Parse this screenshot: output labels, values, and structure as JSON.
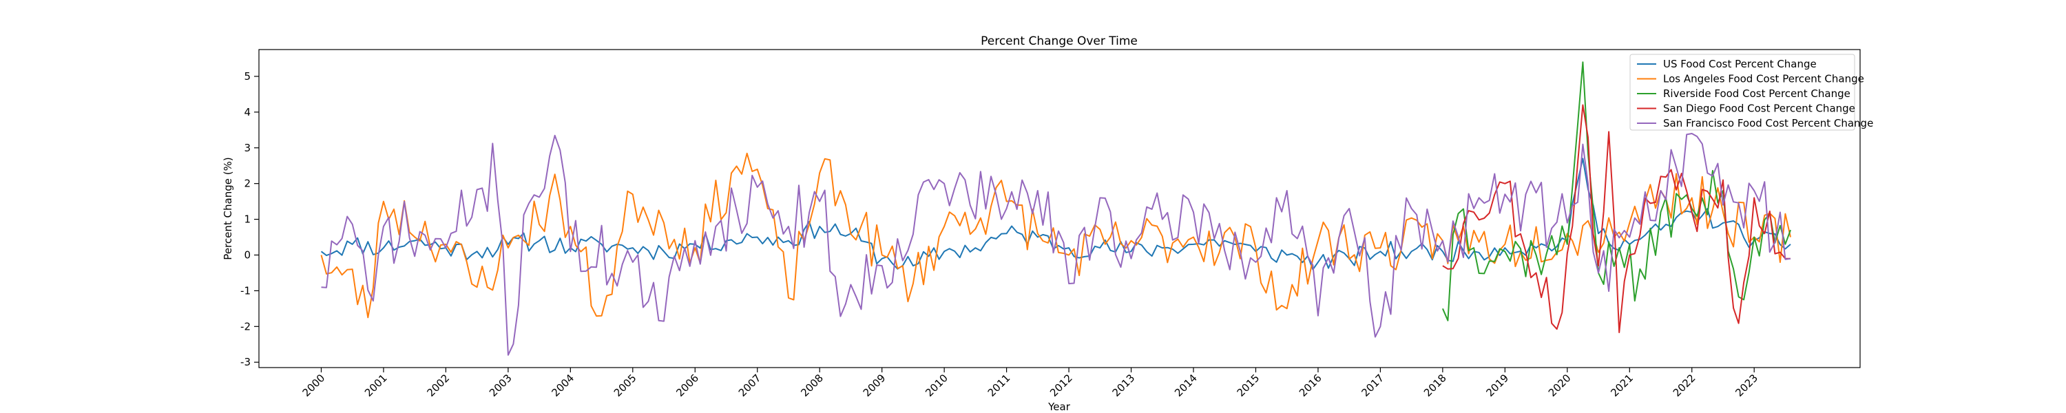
{
  "chart_data": {
    "type": "line",
    "title": "Percent Change Over Time",
    "xlabel": "Year",
    "ylabel": "Percent Change (%)",
    "xlim": [
      1999.0,
      2024.7
    ],
    "ylim": [
      -3.15,
      5.75
    ],
    "y_ticks": [
      -3,
      -2,
      -1,
      0,
      1,
      2,
      3,
      4,
      5
    ],
    "x_ticks": [
      "2000",
      "2001",
      "2002",
      "2003",
      "2004",
      "2005",
      "2006",
      "2007",
      "2008",
      "2009",
      "2010",
      "2011",
      "2012",
      "2013",
      "2014",
      "2015",
      "2016",
      "2017",
      "2018",
      "2019",
      "2020",
      "2021",
      "2022",
      "2023"
    ],
    "grid": false,
    "legend_position": "top-right",
    "series": [
      {
        "name": "US Food Cost Percent Change",
        "color": "#1f77b4",
        "start": 2000.0,
        "end": 2023.58,
        "points": [
          [
            2000.0,
            0.1
          ],
          [
            2000.5,
            0.3
          ],
          [
            2001.0,
            0.2
          ],
          [
            2001.5,
            0.4
          ],
          [
            2002.0,
            0.2
          ],
          [
            2002.5,
            0.1
          ],
          [
            2003.0,
            0.3
          ],
          [
            2003.5,
            0.4
          ],
          [
            2004.0,
            0.2
          ],
          [
            2004.5,
            0.3
          ],
          [
            2005.0,
            0.2
          ],
          [
            2005.5,
            0.1
          ],
          [
            2006.0,
            0.3
          ],
          [
            2006.5,
            0.4
          ],
          [
            2007.0,
            0.5
          ],
          [
            2007.5,
            0.4
          ],
          [
            2008.0,
            0.8
          ],
          [
            2008.5,
            0.6
          ],
          [
            2009.0,
            -0.1
          ],
          [
            2009.5,
            -0.3
          ],
          [
            2010.0,
            0.1
          ],
          [
            2010.5,
            0.2
          ],
          [
            2011.0,
            0.6
          ],
          [
            2011.5,
            0.5
          ],
          [
            2012.0,
            0.2
          ],
          [
            2012.5,
            0.2
          ],
          [
            2013.0,
            0.1
          ],
          [
            2013.5,
            0.2
          ],
          [
            2014.0,
            0.3
          ],
          [
            2014.5,
            0.4
          ],
          [
            2015.0,
            0.1
          ],
          [
            2015.5,
            0.0
          ],
          [
            2016.0,
            -0.2
          ],
          [
            2016.5,
            -0.1
          ],
          [
            2017.0,
            0.1
          ],
          [
            2017.5,
            0.1
          ],
          [
            2018.0,
            0.1
          ],
          [
            2018.5,
            0.1
          ],
          [
            2019.0,
            0.2
          ],
          [
            2019.5,
            0.2
          ],
          [
            2020.0,
            0.4
          ],
          [
            2020.25,
            2.7
          ],
          [
            2020.5,
            0.6
          ],
          [
            2021.0,
            0.3
          ],
          [
            2021.5,
            0.7
          ],
          [
            2022.0,
            1.2
          ],
          [
            2022.5,
            0.9
          ],
          [
            2023.0,
            0.4
          ],
          [
            2023.58,
            0.3
          ]
        ],
        "amplitude": 0.28,
        "seed": 11
      },
      {
        "name": "Los Angeles Food Cost Percent Change",
        "color": "#ff7f0e",
        "start": 2000.0,
        "end": 2023.58,
        "points": [
          [
            2000.0,
            0.0
          ],
          [
            2000.8,
            -1.4
          ],
          [
            2001.0,
            1.5
          ],
          [
            2002.0,
            0.3
          ],
          [
            2002.5,
            -0.9
          ],
          [
            2003.0,
            0.2
          ],
          [
            2003.8,
            1.7
          ],
          [
            2004.5,
            -1.7
          ],
          [
            2005.0,
            1.7
          ],
          [
            2006.0,
            0.2
          ],
          [
            2006.7,
            2.6
          ],
          [
            2007.0,
            2.4
          ],
          [
            2007.5,
            -1.2
          ],
          [
            2008.0,
            2.3
          ],
          [
            2009.0,
            0.0
          ],
          [
            2009.5,
            -0.8
          ],
          [
            2010.0,
            0.8
          ],
          [
            2011.0,
            1.5
          ],
          [
            2011.5,
            0.6
          ],
          [
            2012.0,
            0.0
          ],
          [
            2013.0,
            0.4
          ],
          [
            2014.0,
            0.5
          ],
          [
            2015.0,
            0.2
          ],
          [
            2015.5,
            -1.5
          ],
          [
            2016.0,
            0.4
          ],
          [
            2017.0,
            0.2
          ],
          [
            2018.0,
            0.4
          ],
          [
            2019.0,
            0.3
          ],
          [
            2020.0,
            0.6
          ],
          [
            2021.0,
            0.9
          ],
          [
            2021.5,
            1.8
          ],
          [
            2022.0,
            1.6
          ],
          [
            2022.5,
            1.2
          ],
          [
            2023.0,
            0.5
          ],
          [
            2023.58,
            0.5
          ]
        ],
        "amplitude": 0.75,
        "seed": 23
      },
      {
        "name": "Riverside Food Cost Percent Change",
        "color": "#2ca02c",
        "start": 2018.0,
        "end": 2023.58,
        "points": [
          [
            2018.0,
            -1.5
          ],
          [
            2018.1,
            -1.9
          ],
          [
            2018.2,
            1.8
          ],
          [
            2018.5,
            0.2
          ],
          [
            2019.0,
            0.1
          ],
          [
            2019.5,
            0.0
          ],
          [
            2020.0,
            0.3
          ],
          [
            2020.25,
            5.4
          ],
          [
            2020.5,
            -0.5
          ],
          [
            2021.0,
            0.3
          ],
          [
            2021.1,
            -1.6
          ],
          [
            2021.5,
            1.2
          ],
          [
            2022.0,
            1.3
          ],
          [
            2022.5,
            1.8
          ],
          [
            2022.8,
            -1.6
          ],
          [
            2023.0,
            0.5
          ],
          [
            2023.58,
            0.7
          ]
        ],
        "amplitude": 0.75,
        "seed": 37
      },
      {
        "name": "San Diego Food Cost Percent Change",
        "color": "#d62728",
        "start": 2018.0,
        "end": 2023.58,
        "points": [
          [
            2018.0,
            -0.3
          ],
          [
            2018.5,
            1.2
          ],
          [
            2019.0,
            2.0
          ],
          [
            2019.5,
            -0.5
          ],
          [
            2019.9,
            -1.9
          ],
          [
            2020.25,
            4.2
          ],
          [
            2020.5,
            -0.3
          ],
          [
            2020.7,
            4.2
          ],
          [
            2020.8,
            -2.6
          ],
          [
            2021.0,
            0.0
          ],
          [
            2021.5,
            2.2
          ],
          [
            2021.8,
            2.5
          ],
          [
            2022.0,
            1.2
          ],
          [
            2022.5,
            2.1
          ],
          [
            2022.7,
            -2.2
          ],
          [
            2023.0,
            1.6
          ],
          [
            2023.58,
            -0.1
          ]
        ],
        "amplitude": 0.7,
        "seed": 53
      },
      {
        "name": "San Francisco Food Cost Percent Change",
        "color": "#9467bd",
        "start": 2000.0,
        "end": 2023.58,
        "points": [
          [
            2000.0,
            -0.9
          ],
          [
            2000.4,
            1.2
          ],
          [
            2000.8,
            -1.7
          ],
          [
            2001.0,
            0.8
          ],
          [
            2002.0,
            0.2
          ],
          [
            2002.8,
            2.4
          ],
          [
            2003.0,
            -2.8
          ],
          [
            2003.3,
            1.3
          ],
          [
            2003.8,
            3.5
          ],
          [
            2004.0,
            0.1
          ],
          [
            2005.0,
            -0.2
          ],
          [
            2005.4,
            -1.9
          ],
          [
            2006.0,
            0.4
          ],
          [
            2006.7,
            1.3
          ],
          [
            2007.0,
            1.9
          ],
          [
            2007.5,
            0.8
          ],
          [
            2008.0,
            1.5
          ],
          [
            2008.4,
            -1.4
          ],
          [
            2009.0,
            -0.3
          ],
          [
            2009.8,
            1.8
          ],
          [
            2010.0,
            2.0
          ],
          [
            2011.0,
            1.3
          ],
          [
            2011.5,
            1.8
          ],
          [
            2012.0,
            -0.8
          ],
          [
            2012.5,
            1.6
          ],
          [
            2013.0,
            -0.1
          ],
          [
            2013.5,
            1.0
          ],
          [
            2014.0,
            1.2
          ],
          [
            2015.0,
            -0.2
          ],
          [
            2015.5,
            1.8
          ],
          [
            2016.0,
            -1.7
          ],
          [
            2016.5,
            1.3
          ],
          [
            2017.0,
            -2.0
          ],
          [
            2017.5,
            1.3
          ],
          [
            2018.0,
            0.4
          ],
          [
            2019.0,
            1.7
          ],
          [
            2020.0,
            0.9
          ],
          [
            2020.25,
            3.1
          ],
          [
            2020.5,
            -0.5
          ],
          [
            2021.0,
            0.5
          ],
          [
            2021.5,
            1.8
          ],
          [
            2022.0,
            3.4
          ],
          [
            2022.5,
            1.4
          ],
          [
            2023.0,
            1.8
          ],
          [
            2023.58,
            -0.1
          ]
        ],
        "amplitude": 0.95,
        "seed": 71
      }
    ]
  }
}
